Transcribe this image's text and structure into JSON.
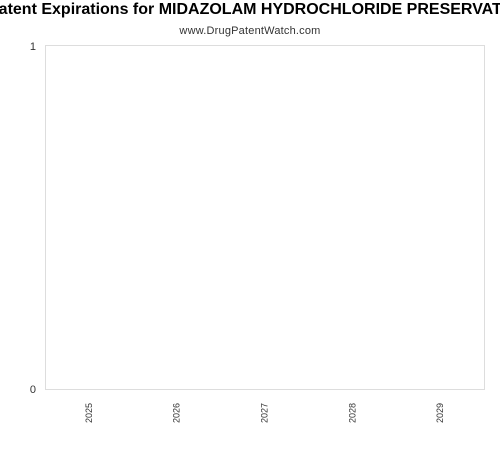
{
  "chart_data": {
    "type": "bar",
    "title": "Patent Expirations for MIDAZOLAM HYDROCHLORIDE PRESERVATIVE FREE",
    "subtitle": "www.DrugPatentWatch.com",
    "categories": [
      "2025",
      "2026",
      "2027",
      "2028",
      "2029"
    ],
    "values": [
      0,
      0,
      0,
      0,
      0
    ],
    "y_ticks": [
      "0",
      "1"
    ],
    "ylim": [
      0,
      1
    ],
    "grid": false,
    "legend": "none",
    "colors": {
      "plot_border": "#dddddd",
      "text": "#333333"
    }
  }
}
